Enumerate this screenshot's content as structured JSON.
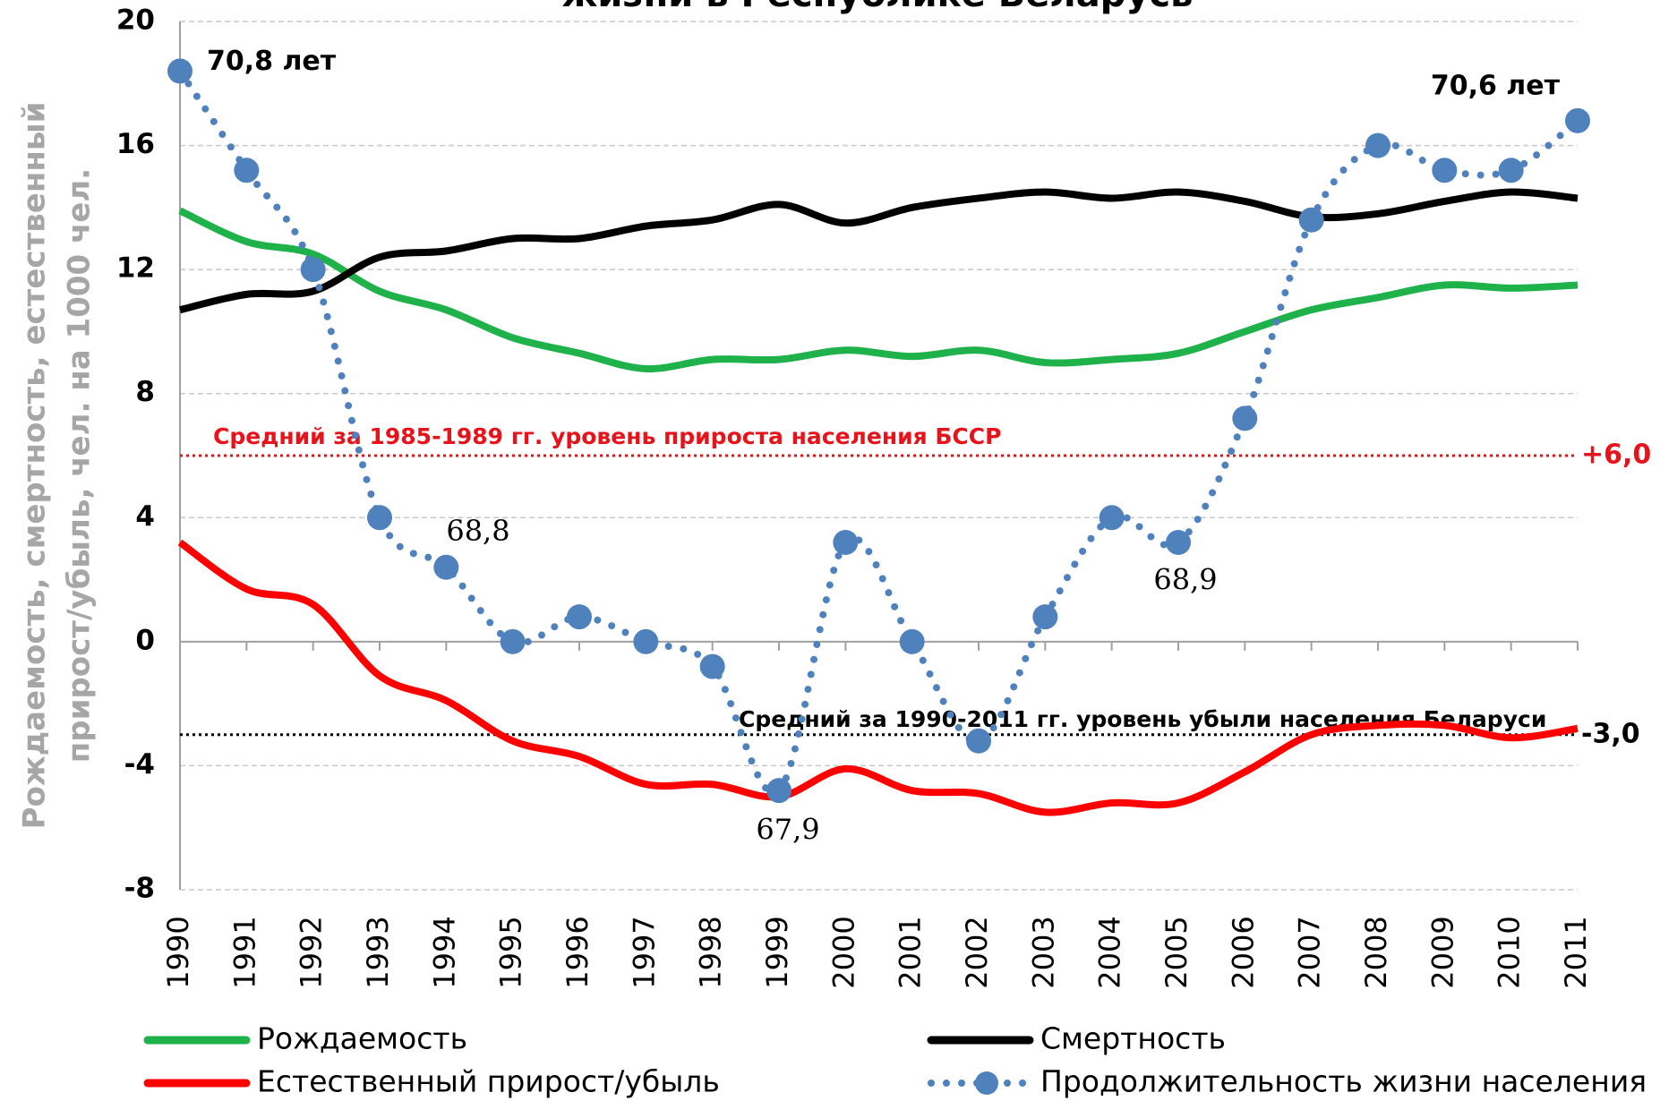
{
  "chart_data": {
    "type": "line",
    "title": "жизни в Республике Беларусь",
    "ylabel": [
      "Рождаемость,  смертность,  естественный",
      "прирост/убыль,  чел. на 1000 чел."
    ],
    "categories": [
      "1990",
      "1991",
      "1992",
      "1993",
      "1994",
      "1995",
      "1996",
      "1997",
      "1998",
      "1999",
      "2000",
      "2001",
      "2002",
      "2003",
      "2004",
      "2005",
      "2006",
      "2007",
      "2008",
      "2009",
      "2010",
      "2011"
    ],
    "ylim": [
      -8,
      20
    ],
    "yticks": [
      -8,
      -4,
      0,
      4,
      8,
      12,
      16,
      20
    ],
    "y2lim": [
      67.5,
      71
    ],
    "grid": true,
    "series": [
      {
        "name": "Рождаемость",
        "color": "#1fb24a",
        "style": "solid",
        "values": [
          13.9,
          12.9,
          12.5,
          11.3,
          10.7,
          9.8,
          9.3,
          8.8,
          9.1,
          9.1,
          9.4,
          9.2,
          9.4,
          9.0,
          9.1,
          9.3,
          10.0,
          10.7,
          11.1,
          11.5,
          11.4,
          11.5
        ]
      },
      {
        "name": "Смертность",
        "color": "#000000",
        "style": "solid",
        "values": [
          10.7,
          11.2,
          11.3,
          12.4,
          12.6,
          13.0,
          13.0,
          13.4,
          13.6,
          14.1,
          13.5,
          14.0,
          14.3,
          14.5,
          14.3,
          14.5,
          14.2,
          13.7,
          13.8,
          14.2,
          14.5,
          14.3
        ]
      },
      {
        "name": "Естественный  прирост/убыль",
        "color": "#ff0000",
        "style": "solid",
        "values": [
          3.2,
          1.7,
          1.2,
          -1.1,
          -1.9,
          -3.2,
          -3.7,
          -4.6,
          -4.6,
          -5.0,
          -4.1,
          -4.8,
          -4.9,
          -5.5,
          -5.2,
          -5.2,
          -4.2,
          -3.0,
          -2.7,
          -2.7,
          -3.1,
          -2.8
        ]
      },
      {
        "name": "Продолжительность  жизни  населения",
        "color": "#4f81bd",
        "style": "dotted-markers",
        "axis": "y2",
        "values": [
          70.8,
          70.4,
          70.0,
          69.0,
          68.8,
          68.5,
          68.6,
          68.5,
          68.4,
          67.9,
          68.9,
          68.5,
          68.1,
          68.6,
          69.0,
          68.9,
          69.4,
          70.2,
          70.5,
          70.4,
          70.4,
          70.6
        ],
        "value_labels": [
          "70,8 лет",
          null,
          null,
          null,
          "68,8",
          null,
          null,
          null,
          null,
          "67,9",
          null,
          null,
          null,
          null,
          null,
          "68,9",
          null,
          null,
          null,
          null,
          null,
          "70,6 лет"
        ]
      }
    ],
    "reference_lines": [
      {
        "value": 6,
        "label": "+6,0",
        "text": "Средний за 1985-1989 гг. уровень прироста населения БССР",
        "color": "#e8131a"
      },
      {
        "value": -3,
        "label": "-3,0",
        "text": "Средний за 1990-2011 гг. уровень убыли населения Беларуси",
        "color": "#000000"
      }
    ]
  }
}
